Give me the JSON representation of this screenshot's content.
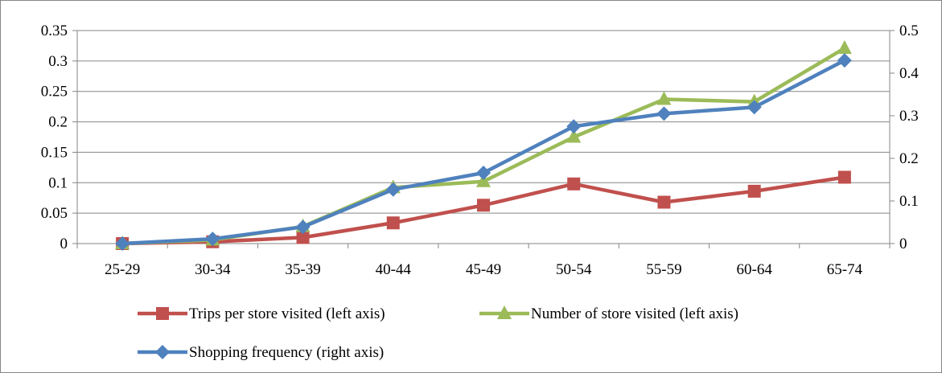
{
  "chart_data": {
    "type": "line",
    "categories": [
      "25-29",
      "30-34",
      "35-39",
      "40-44",
      "45-49",
      "50-54",
      "55-59",
      "60-64",
      "65-74"
    ],
    "y_left": {
      "ticks": [
        "0",
        "0.05",
        "0.1",
        "0.15",
        "0.2",
        "0.25",
        "0.3",
        "0.35"
      ],
      "ylim": [
        0,
        0.35
      ]
    },
    "y_right": {
      "ticks": [
        "0",
        "0.1",
        "0.2",
        "0.3",
        "0.4",
        "0.5"
      ],
      "ylim": [
        0,
        0.5
      ]
    },
    "grid": "horizontal",
    "legend_position": "bottom",
    "series": [
      {
        "name": "Trips per store visited (left axis)",
        "axis": "left",
        "color": "#C0504D",
        "marker": "square",
        "values": [
          0.0,
          0.003,
          0.01,
          0.034,
          0.063,
          0.098,
          0.068,
          0.086,
          0.109
        ]
      },
      {
        "name": "Number of store visited (left axis)",
        "axis": "left",
        "color": "#9BBB59",
        "marker": "triangle",
        "values": [
          0.0,
          0.006,
          0.028,
          0.092,
          0.102,
          0.175,
          0.237,
          0.233,
          0.321
        ]
      },
      {
        "name": "Shopping frequency (right axis)",
        "axis": "right",
        "color": "#4F81BD",
        "marker": "diamond",
        "values": [
          0.0,
          0.011,
          0.039,
          0.127,
          0.166,
          0.275,
          0.305,
          0.32,
          0.43
        ]
      }
    ]
  }
}
